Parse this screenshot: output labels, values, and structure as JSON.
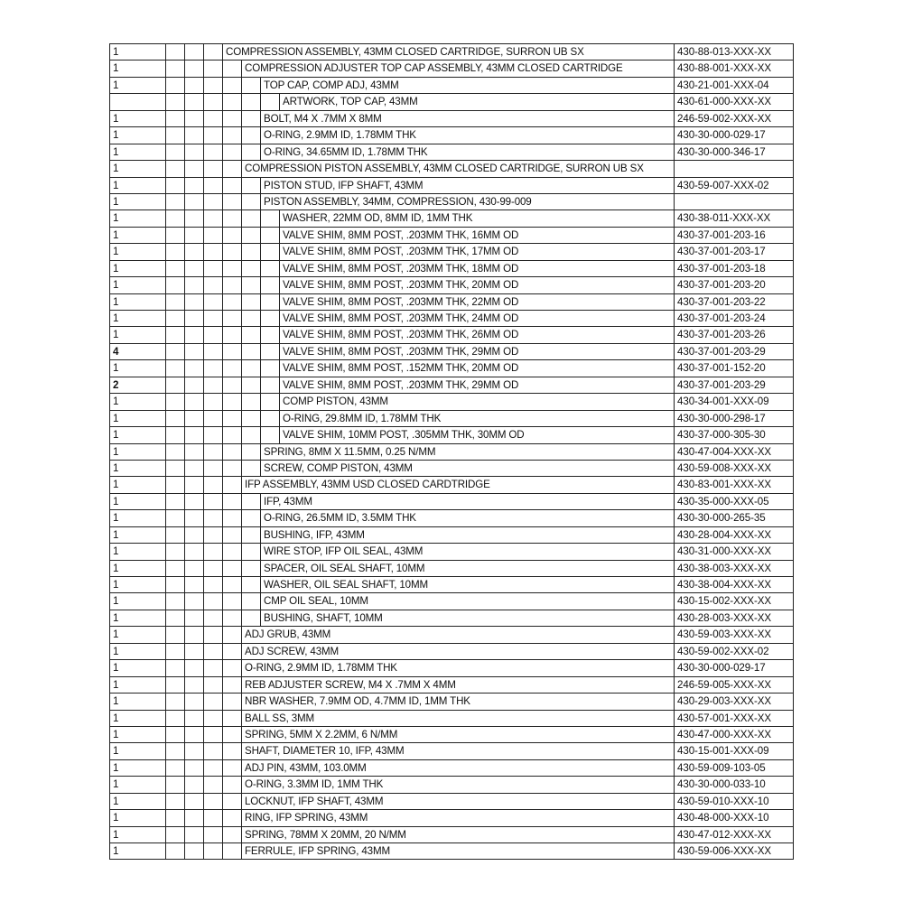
{
  "bom": {
    "rows": [
      {
        "qty": "1",
        "level": 0,
        "description": "COMPRESSION ASSEMBLY, 43MM CLOSED CARTRIDGE, SURRON UB SX",
        "part": "430-88-013-XXX-XX"
      },
      {
        "qty": "1",
        "level": 1,
        "description": "COMPRESSION ADJUSTER TOP CAP ASSEMBLY, 43MM CLOSED CARTRIDGE",
        "part": "430-88-001-XXX-XX"
      },
      {
        "qty": "1",
        "level": 2,
        "description": "TOP CAP, COMP ADJ, 43MM",
        "part": "430-21-001-XXX-04"
      },
      {
        "qty": "",
        "level": 3,
        "description": "ARTWORK, TOP CAP, 43MM",
        "part": "430-61-000-XXX-XX"
      },
      {
        "qty": "1",
        "level": 2,
        "description": "BOLT, M4 X .7MM X 8MM",
        "part": "246-59-002-XXX-XX"
      },
      {
        "qty": "1",
        "level": 2,
        "description": "O-RING, 2.9MM ID, 1.78MM THK",
        "part": "430-30-000-029-17"
      },
      {
        "qty": "1",
        "level": 2,
        "description": "O-RING, 34.65MM ID, 1.78MM THK",
        "part": "430-30-000-346-17"
      },
      {
        "qty": "1",
        "level": 1,
        "description": "COMPRESSION PISTON ASSEMBLY, 43MM CLOSED CARTRIDGE, SURRON UB SX",
        "part": ""
      },
      {
        "qty": "1",
        "level": 2,
        "description": "PISTON STUD, IFP SHAFT, 43MM",
        "part": "430-59-007-XXX-02"
      },
      {
        "qty": "1",
        "level": 2,
        "description": "PISTON ASSEMBLY, 34MM, COMPRESSION, 430-99-009",
        "part": ""
      },
      {
        "qty": "1",
        "level": 3,
        "description": "WASHER, 22MM OD, 8MM ID, 1MM THK",
        "part": "430-38-011-XXX-XX"
      },
      {
        "qty": "1",
        "level": 3,
        "description": "VALVE SHIM, 8MM POST, .203MM THK, 16MM OD",
        "part": "430-37-001-203-16"
      },
      {
        "qty": "1",
        "level": 3,
        "description": "VALVE SHIM, 8MM POST, .203MM THK, 17MM OD",
        "part": "430-37-001-203-17"
      },
      {
        "qty": "1",
        "level": 3,
        "description": "VALVE SHIM, 8MM POST, .203MM THK, 18MM OD",
        "part": "430-37-001-203-18"
      },
      {
        "qty": "1",
        "level": 3,
        "description": "VALVE SHIM, 8MM POST, .203MM THK, 20MM OD",
        "part": "430-37-001-203-20"
      },
      {
        "qty": "1",
        "level": 3,
        "description": "VALVE SHIM, 8MM POST, .203MM THK, 22MM OD",
        "part": "430-37-001-203-22"
      },
      {
        "qty": "1",
        "level": 3,
        "description": "VALVE SHIM, 8MM POST, .203MM THK, 24MM OD",
        "part": "430-37-001-203-24"
      },
      {
        "qty": "1",
        "level": 3,
        "description": "VALVE SHIM, 8MM POST, .203MM THK, 26MM OD",
        "part": "430-37-001-203-26"
      },
      {
        "qty": "4",
        "level": 3,
        "bold": true,
        "description": "VALVE SHIM, 8MM POST, .203MM THK, 29MM OD",
        "part": "430-37-001-203-29"
      },
      {
        "qty": "1",
        "level": 3,
        "description": "VALVE SHIM, 8MM POST, .152MM THK, 20MM OD",
        "part": "430-37-001-152-20"
      },
      {
        "qty": "2",
        "level": 3,
        "bold": true,
        "description": "VALVE SHIM, 8MM POST, .203MM THK, 29MM OD",
        "part": "430-37-001-203-29"
      },
      {
        "qty": "1",
        "level": 3,
        "description": "COMP PISTON, 43MM",
        "part": "430-34-001-XXX-09"
      },
      {
        "qty": "1",
        "level": 3,
        "description": "O-RING, 29.8MM ID, 1.78MM THK",
        "part": "430-30-000-298-17"
      },
      {
        "qty": "1",
        "level": 3,
        "description": "VALVE SHIM, 10MM POST, .305MM THK, 30MM OD",
        "part": "430-37-000-305-30"
      },
      {
        "qty": "1",
        "level": 2,
        "description": "SPRING, 8MM X 11.5MM, 0.25 N/MM",
        "part": "430-47-004-XXX-XX"
      },
      {
        "qty": "1",
        "level": 2,
        "description": "SCREW, COMP PISTON, 43MM",
        "part": "430-59-008-XXX-XX"
      },
      {
        "qty": "1",
        "level": 1,
        "description": "IFP ASSEMBLY, 43MM USD CLOSED CARDTRIDGE",
        "part": "430-83-001-XXX-XX"
      },
      {
        "qty": "1",
        "level": 2,
        "description": "IFP, 43MM",
        "part": "430-35-000-XXX-05"
      },
      {
        "qty": "1",
        "level": 2,
        "description": "O-RING, 26.5MM ID, 3.5MM THK",
        "part": "430-30-000-265-35"
      },
      {
        "qty": "1",
        "level": 2,
        "description": "BUSHING, IFP, 43MM",
        "part": "430-28-004-XXX-XX"
      },
      {
        "qty": "1",
        "level": 2,
        "description": "WIRE STOP, IFP OIL SEAL, 43MM",
        "part": "430-31-000-XXX-XX"
      },
      {
        "qty": "1",
        "level": 2,
        "description": "SPACER, OIL SEAL SHAFT, 10MM",
        "part": "430-38-003-XXX-XX"
      },
      {
        "qty": "1",
        "level": 2,
        "description": "WASHER, OIL SEAL SHAFT, 10MM",
        "part": "430-38-004-XXX-XX"
      },
      {
        "qty": "1",
        "level": 2,
        "description": "CMP OIL SEAL, 10MM",
        "part": "430-15-002-XXX-XX"
      },
      {
        "qty": "1",
        "level": 2,
        "description": "BUSHING, SHAFT, 10MM",
        "part": "430-28-003-XXX-XX"
      },
      {
        "qty": "1",
        "level": 1,
        "description": "ADJ GRUB, 43MM",
        "part": "430-59-003-XXX-XX"
      },
      {
        "qty": "1",
        "level": 1,
        "description": "ADJ SCREW, 43MM",
        "part": "430-59-002-XXX-02"
      },
      {
        "qty": "1",
        "level": 1,
        "description": "O-RING, 2.9MM ID, 1.78MM THK",
        "part": "430-30-000-029-17"
      },
      {
        "qty": "1",
        "level": 1,
        "description": "REB ADJUSTER SCREW, M4 X .7MM X 4MM",
        "part": "246-59-005-XXX-XX"
      },
      {
        "qty": "1",
        "level": 1,
        "description": "NBR WASHER, 7.9MM OD, 4.7MM ID, 1MM THK",
        "part": "430-29-003-XXX-XX"
      },
      {
        "qty": "1",
        "level": 1,
        "description": "BALL SS, 3MM",
        "part": "430-57-001-XXX-XX"
      },
      {
        "qty": "1",
        "level": 1,
        "description": "SPRING, 5MM X 2.2MM, 6 N/MM",
        "part": "430-47-000-XXX-XX"
      },
      {
        "qty": "1",
        "level": 1,
        "description": "SHAFT, DIAMETER 10, IFP, 43MM",
        "part": "430-15-001-XXX-09"
      },
      {
        "qty": "1",
        "level": 1,
        "description": "ADJ PIN, 43MM, 103.0MM",
        "part": "430-59-009-103-05"
      },
      {
        "qty": "1",
        "level": 1,
        "description": "O-RING, 3.3MM ID, 1MM THK",
        "part": "430-30-000-033-10"
      },
      {
        "qty": "1",
        "level": 1,
        "description": "LOCKNUT, IFP SHAFT, 43MM",
        "part": "430-59-010-XXX-10"
      },
      {
        "qty": "1",
        "level": 1,
        "description": "RING, IFP SPRING, 43MM",
        "part": "430-48-000-XXX-10"
      },
      {
        "qty": "1",
        "level": 1,
        "description": "SPRING, 78MM X 20MM, 20 N/MM",
        "part": "430-47-012-XXX-XX"
      },
      {
        "qty": "1",
        "level": 1,
        "description": "FERRULE, IFP SPRING, 43MM",
        "part": "430-59-006-XXX-XX"
      }
    ]
  }
}
